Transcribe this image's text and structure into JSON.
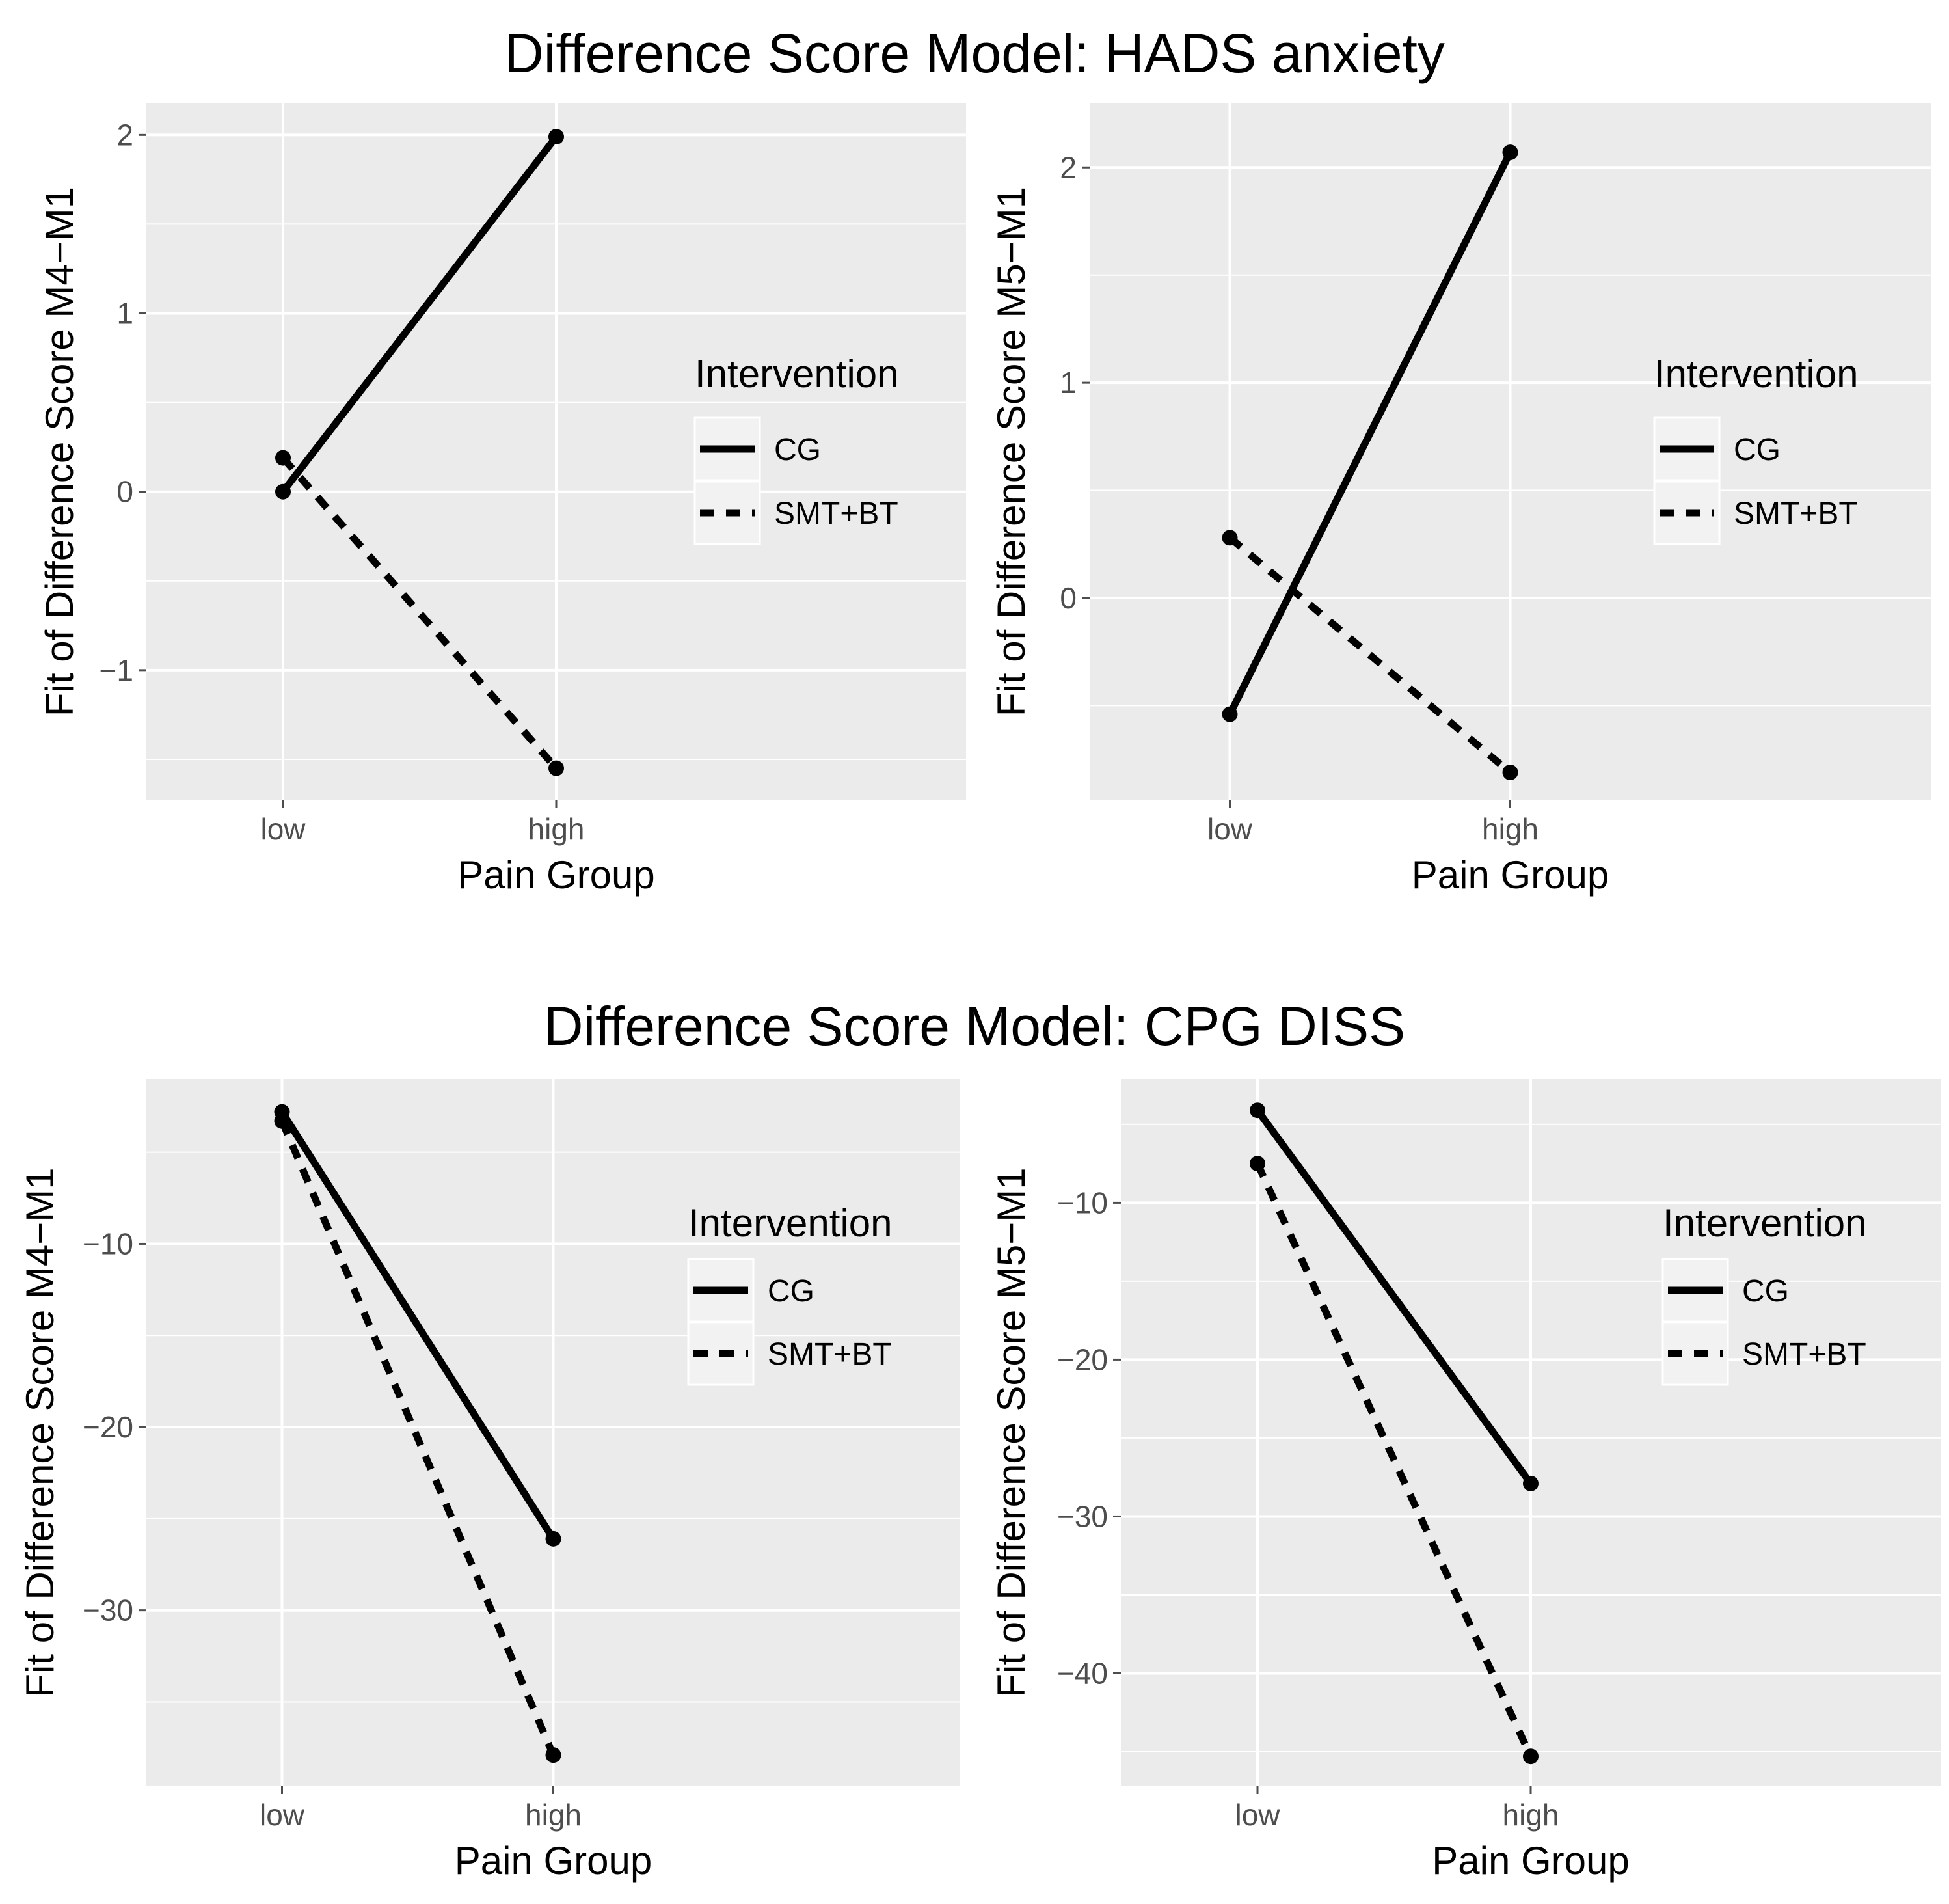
{
  "section_titles": {
    "top": "Difference Score Model: HADS anxiety",
    "bottom": "Difference Score Model: CPG DISS"
  },
  "chart_data": [
    {
      "type": "line",
      "xlabel": "Pain Group",
      "ylabel": "Fit of Difference Score M4−M1",
      "categories": [
        "low",
        "high"
      ],
      "ylim": [
        -1.73,
        2.18
      ],
      "yticks": [
        -1,
        0,
        1,
        2
      ],
      "ytick_labels": [
        "−1",
        "0",
        "1",
        "2"
      ],
      "legend": {
        "title": "Intervention",
        "position": "right"
      },
      "series": [
        {
          "name": "CG",
          "linetype": "solid",
          "values": [
            0.0,
            1.99
          ]
        },
        {
          "name": "SMT+BT",
          "linetype": "dashed",
          "values": [
            0.19,
            -1.55
          ]
        }
      ]
    },
    {
      "type": "line",
      "xlabel": "Pain Group",
      "ylabel": "Fit of Difference Score M5−M1",
      "categories": [
        "low",
        "high"
      ],
      "ylim": [
        -0.94,
        2.3
      ],
      "yticks": [
        0,
        1,
        2
      ],
      "ytick_labels": [
        "0",
        "1",
        "2"
      ],
      "legend": {
        "title": "Intervention",
        "position": "right"
      },
      "series": [
        {
          "name": "CG",
          "linetype": "solid",
          "values": [
            -0.54,
            2.07
          ]
        },
        {
          "name": "SMT+BT",
          "linetype": "dashed",
          "values": [
            0.28,
            -0.81
          ]
        }
      ]
    },
    {
      "type": "line",
      "xlabel": "Pain Group",
      "ylabel": "Fit of Difference Score M4−M1",
      "categories": [
        "low",
        "high"
      ],
      "ylim": [
        -39.6,
        -1.0
      ],
      "yticks": [
        -10,
        -20,
        -30
      ],
      "ytick_labels": [
        "−10",
        "−20",
        "−30"
      ],
      "legend": {
        "title": "Intervention",
        "position": "right"
      },
      "series": [
        {
          "name": "CG",
          "linetype": "solid",
          "values": [
            -2.8,
            -26.1
          ]
        },
        {
          "name": "SMT+BT",
          "linetype": "dashed",
          "values": [
            -3.3,
            -37.9
          ]
        }
      ]
    },
    {
      "type": "line",
      "xlabel": "Pain Group",
      "ylabel": "Fit of Difference Score M5−M1",
      "categories": [
        "low",
        "high"
      ],
      "ylim": [
        -47.2,
        -2.1
      ],
      "yticks": [
        -10,
        -20,
        -30,
        -40
      ],
      "ytick_labels": [
        "−10",
        "−20",
        "−30",
        "−40"
      ],
      "legend": {
        "title": "Intervention",
        "position": "right"
      },
      "series": [
        {
          "name": "CG",
          "linetype": "solid",
          "values": [
            -4.1,
            -27.9
          ]
        },
        {
          "name": "SMT+BT",
          "linetype": "dashed",
          "values": [
            -7.5,
            -45.3
          ]
        }
      ]
    }
  ]
}
